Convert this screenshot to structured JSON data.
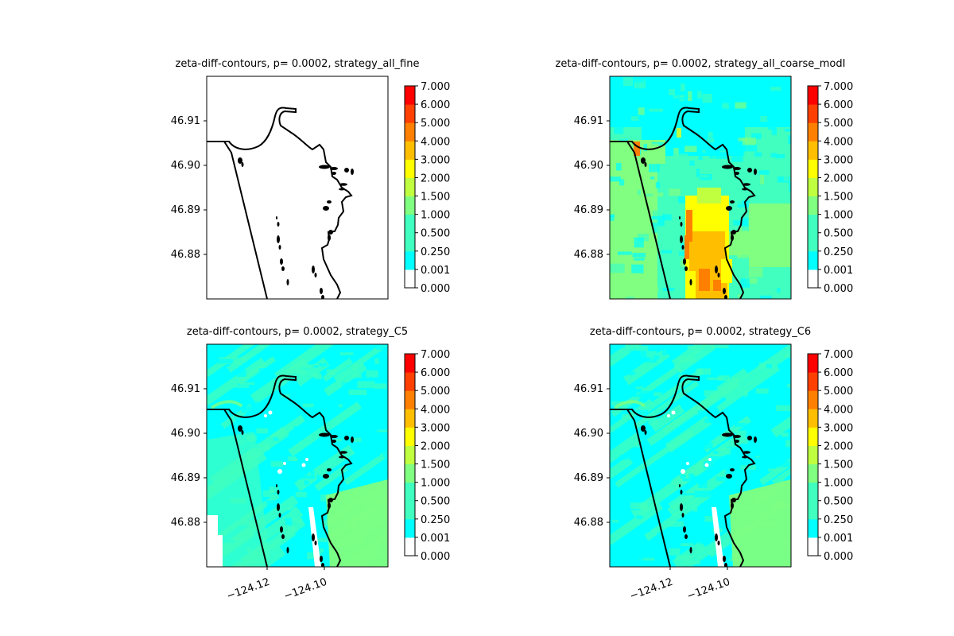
{
  "chart_data": [
    {
      "type": "heatmap",
      "title": "zeta-diff-contours, p= 0.0002, strategy_all_fine",
      "yticks": [
        "46.91",
        "46.90",
        "46.89",
        "46.88"
      ],
      "xticks": [],
      "field": "none",
      "colorbar": {
        "levels": [
          "7.000",
          "6.000",
          "5.000",
          "4.000",
          "3.000",
          "2.000",
          "1.500",
          "1.000",
          "0.500",
          "0.250",
          "0.001",
          "0.000"
        ]
      }
    },
    {
      "type": "heatmap",
      "title": "zeta-diff-contours, p= 0.0002, strategy_all_coarse_modI",
      "yticks": [
        "46.91",
        "46.90",
        "46.89",
        "46.88"
      ],
      "xticks": [],
      "field": "coarse",
      "colorbar": {
        "levels": [
          "7.000",
          "6.000",
          "5.000",
          "4.000",
          "3.000",
          "2.000",
          "1.500",
          "1.000",
          "0.500",
          "0.250",
          "0.001",
          "0.000"
        ]
      }
    },
    {
      "type": "heatmap",
      "title": "zeta-diff-contours, p= 0.0002, strategy_C5",
      "yticks": [
        "46.91",
        "46.90",
        "46.89",
        "46.88"
      ],
      "xticks": [
        "−124.12",
        "−124.10"
      ],
      "field": "c5",
      "colorbar": {
        "levels": [
          "7.000",
          "6.000",
          "5.000",
          "4.000",
          "3.000",
          "2.000",
          "1.500",
          "1.000",
          "0.500",
          "0.250",
          "0.001",
          "0.000"
        ]
      }
    },
    {
      "type": "heatmap",
      "title": "zeta-diff-contours, p= 0.0002, strategy_C6",
      "yticks": [
        "46.91",
        "46.90",
        "46.89",
        "46.88"
      ],
      "xticks": [
        "−124.12",
        "−124.10"
      ],
      "field": "c6",
      "colorbar": {
        "levels": [
          "7.000",
          "6.000",
          "5.000",
          "4.000",
          "3.000",
          "2.000",
          "1.500",
          "1.000",
          "0.500",
          "0.250",
          "0.001",
          "0.000"
        ]
      }
    }
  ],
  "colors": {
    "levels": [
      "#ffffff",
      "#00ffff",
      "#40ffbf",
      "#80ff80",
      "#bfff40",
      "#ffff00",
      "#ffbf00",
      "#ff8000",
      "#ff4000",
      "#ff0000"
    ],
    "coast": "#000000"
  }
}
